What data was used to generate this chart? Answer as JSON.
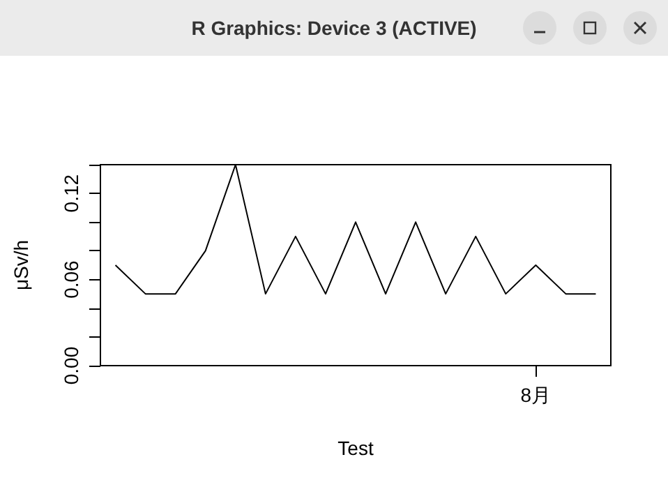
{
  "chart_data": {
    "type": "line",
    "annotations": [
      "R Graphics: Device 3 (ACTIVE)"
    ],
    "xlabel": "Test",
    "ylabel": "μSv/h",
    "categories": [
      null,
      null,
      null,
      null,
      null,
      null,
      null,
      null,
      null,
      null,
      null,
      null,
      null,
      null,
      "8月",
      null,
      null
    ],
    "series": [
      {
        "color": "#000000",
        "values": [
          0.07,
          0.05,
          0.05,
          0.08,
          0.14,
          0.05,
          0.09,
          0.05,
          0.1,
          0.05,
          0.1,
          0.05,
          0.09,
          0.05,
          0.07,
          0.05,
          0.05
        ]
      }
    ],
    "ylim": [
      0,
      0.14
    ],
    "yticks": [
      {
        "value": 0,
        "label": "0.00"
      },
      {
        "value": 0.02,
        "label": null
      },
      {
        "value": 0.04,
        "label": null
      },
      {
        "value": 0.06,
        "label": "0.06"
      },
      {
        "value": 0.08,
        "label": null
      },
      {
        "value": 0.1,
        "label": null
      },
      {
        "value": 0.12,
        "label": "0.12"
      },
      {
        "value": 0.14,
        "label": null
      }
    ],
    "grid": false,
    "marker": "none",
    "line_style": "solid"
  }
}
